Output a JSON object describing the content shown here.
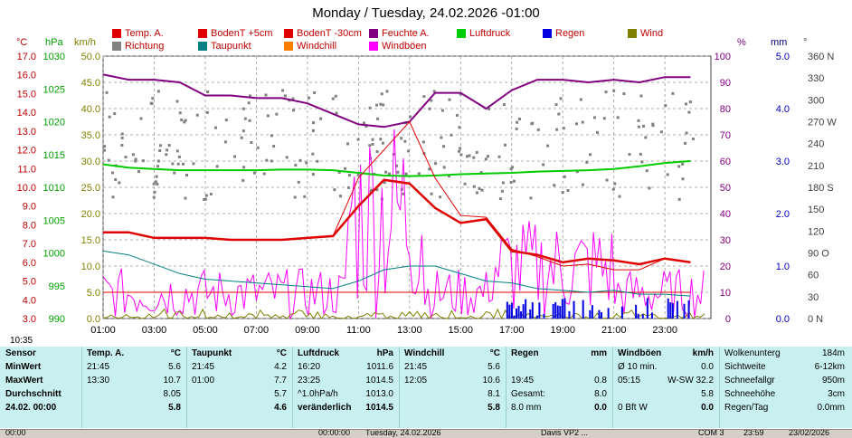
{
  "title": "Monday / Tuesday, 24.02.2026  -01:00",
  "legend": [
    {
      "label": "Temp. A.",
      "color": "#e00000"
    },
    {
      "label": "BodenT +5cm",
      "color": "#e00000"
    },
    {
      "label": "BodenT -30cm",
      "color": "#e00000"
    },
    {
      "label": "Feuchte A.",
      "color": "#800080"
    },
    {
      "label": "Luftdruck",
      "color": "#00cc00"
    },
    {
      "label": "Regen",
      "color": "#0000e0"
    },
    {
      "label": "Wind",
      "color": "#808000"
    },
    {
      "label": "Richtung",
      "color": "#808080"
    },
    {
      "label": "Taupunkt",
      "color": "#008080"
    },
    {
      "label": "Windchill",
      "color": "#ff8000"
    },
    {
      "label": "Windböen",
      "color": "#ff00ff"
    }
  ],
  "axis_units": {
    "temp": "°C",
    "hpa": "hPa",
    "kmh": "km/h",
    "pct": "%",
    "mm": "mm",
    "deg": "°"
  },
  "time_marker": "10:35",
  "chart_data": {
    "type": "line",
    "x_ticks": [
      "01:00",
      "03:00",
      "05:00",
      "07:00",
      "09:00",
      "11:00",
      "13:00",
      "15:00",
      "17:00",
      "19:00",
      "21:00",
      "23:00"
    ],
    "y_temp_ticks": [
      "17.0",
      "16.0",
      "15.0",
      "14.0",
      "13.0",
      "12.0",
      "11.0",
      "10.0",
      "9.0",
      "8.0",
      "7.0",
      "6.0",
      "5.0",
      "4.0",
      "3.0"
    ],
    "y_hpa_ticks": [
      "1030",
      "1025",
      "1020",
      "1015",
      "1010",
      "1005",
      "1000",
      "995",
      "990"
    ],
    "y_kmh_ticks": [
      "50.0",
      "45.0",
      "40.0",
      "35.0",
      "30.0",
      "25.0",
      "20.0",
      "15.0",
      "10.0",
      "5.0",
      "0.0"
    ],
    "y_pct_ticks": [
      "100",
      "90",
      "80",
      "70",
      "60",
      "50",
      "40",
      "30",
      "20",
      "10",
      "0"
    ],
    "y_mm_ticks": [
      "5.0",
      "4.0",
      "3.0",
      "2.0",
      "1.0",
      "0.0"
    ],
    "y_deg_ticks": [
      "360 N",
      "330",
      "300",
      "270 W",
      "240",
      "210",
      "180 S",
      "150",
      "120",
      "90 O",
      "60",
      "30",
      "0 N"
    ],
    "hours": [
      1,
      2,
      3,
      4,
      5,
      6,
      7,
      8,
      9,
      10,
      11,
      12,
      13,
      14,
      15,
      16,
      17,
      18,
      19,
      20,
      21,
      22,
      23,
      24
    ],
    "series": [
      {
        "name": "Temp. A.",
        "values": [
          7.6,
          7.6,
          7.3,
          7.3,
          7.3,
          7.2,
          7.2,
          7.2,
          7.3,
          7.4,
          9.0,
          10.4,
          10.2,
          8.9,
          8.1,
          8.3,
          6.6,
          6.4,
          6.0,
          6.2,
          6.1,
          5.9,
          6.2,
          6.0
        ]
      },
      {
        "name": "Feuchte A.",
        "values": [
          93,
          91,
          91,
          90,
          85,
          85,
          84,
          84,
          82,
          78,
          74,
          73,
          75,
          86,
          86,
          80,
          87,
          91,
          91,
          90,
          91,
          90,
          92,
          92
        ]
      },
      {
        "name": "Luftdruck",
        "values": [
          1013.5,
          1013.0,
          1012.8,
          1012.6,
          1012.6,
          1012.6,
          1012.6,
          1012.7,
          1012.7,
          1012.6,
          1012.2,
          1011.8,
          1011.7,
          1011.8,
          1012.0,
          1012.1,
          1012.2,
          1012.4,
          1012.5,
          1012.6,
          1012.8,
          1013.2,
          1013.7,
          1014.0
        ]
      },
      {
        "name": "Taupunkt",
        "values": [
          6.6,
          6.4,
          5.9,
          5.4,
          5.1,
          5.0,
          4.9,
          4.8,
          4.7,
          4.6,
          5.0,
          5.6,
          5.8,
          5.8,
          5.4,
          5.0,
          4.9,
          4.6,
          4.5,
          4.4,
          4.5,
          4.3,
          4.3,
          4.2
        ]
      },
      {
        "name": "BodenT -30cm",
        "values": [
          4.4,
          4.4,
          4.4,
          4.4,
          4.4,
          4.4,
          4.4,
          4.4,
          4.4,
          4.4,
          4.4,
          4.4,
          4.4,
          4.4,
          4.4,
          4.4,
          4.4,
          4.4,
          4.4,
          4.4,
          4.4,
          4.4,
          4.4,
          4.4
        ]
      }
    ]
  },
  "stats": {
    "sensor": {
      "title": "Sensor",
      "rows": [
        "MinWert",
        "MaxWert",
        "Durchschnitt",
        "24.02. 00:00"
      ]
    },
    "temp": {
      "title": "Temp. A.",
      "unit": "°C",
      "rows": [
        [
          "21:45",
          "5.6"
        ],
        [
          "13:30",
          "10.7"
        ],
        [
          "",
          "8.05"
        ],
        [
          "",
          "5.8"
        ]
      ]
    },
    "taupunkt": {
      "title": "Taupunkt",
      "unit": "°C",
      "rows": [
        [
          "21:45",
          "4.2"
        ],
        [
          "01:00",
          "7.7"
        ],
        [
          "",
          "5.7"
        ],
        [
          "",
          "4.6"
        ]
      ]
    },
    "luftdruck": {
      "title": "Luftdruck",
      "unit": "hPa",
      "rows": [
        [
          "16:20",
          "1011.6"
        ],
        [
          "23:25",
          "1014.5"
        ],
        [
          "^1.0hPa/h",
          "1013.0"
        ],
        [
          "veränderlich",
          "1014.5"
        ]
      ]
    },
    "windchill": {
      "title": "Windchill",
      "unit": "°C",
      "rows": [
        [
          "21:45",
          "5.6"
        ],
        [
          "12:05",
          "10.6"
        ],
        [
          "",
          "8.1"
        ],
        [
          "",
          "5.8"
        ]
      ]
    },
    "regen": {
      "title": "Regen",
      "unit": "mm",
      "rows": [
        [
          "",
          ""
        ],
        [
          "19:45",
          "0.8"
        ],
        [
          "Gesamt:",
          "8.0"
        ],
        [
          "8.0 mm",
          "0.0"
        ]
      ]
    },
    "windboeen": {
      "title": "Windböen",
      "unit": "km/h",
      "rows": [
        [
          "Ø 10 min.",
          "0.0"
        ],
        [
          "05:15",
          "W-SW 32.2"
        ],
        [
          "",
          "5.8"
        ],
        [
          "0 Bft W",
          "0.0"
        ]
      ]
    },
    "misc": {
      "rows": [
        [
          "Wolkenunterg",
          "184m"
        ],
        [
          "Sichtweite",
          "6-12km"
        ],
        [
          "Schneefallgr",
          "950m"
        ],
        [
          "Schneehöhe",
          "3cm"
        ],
        [
          "Regen/Tag",
          "0.0mm"
        ]
      ]
    }
  },
  "statusbar": [
    "00:00",
    "00:00:00",
    "Tuesday, 24.02.2026",
    "Davis VP2 ...",
    "COM 3",
    "23:59",
    "23/02/2026"
  ]
}
